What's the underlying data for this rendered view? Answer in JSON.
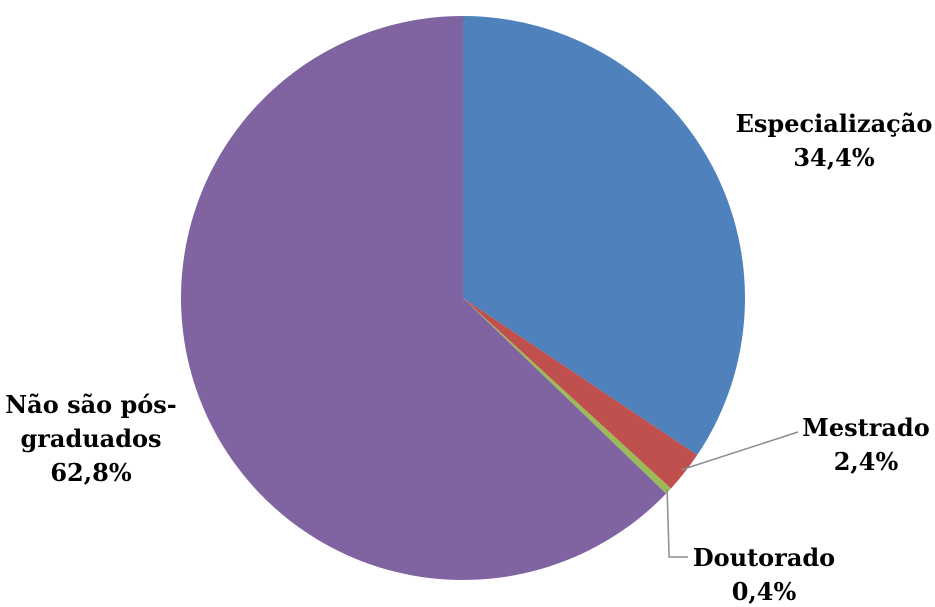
{
  "chart_data": {
    "type": "pie",
    "title": "",
    "slices": [
      {
        "label": "Especialização",
        "value": 34.4,
        "value_label": "34,4%",
        "color": "#4F81BD"
      },
      {
        "label": "Mestrado",
        "value": 2.4,
        "value_label": "2,4%",
        "color": "#C0504D"
      },
      {
        "label": "Doutorado",
        "value": 0.4,
        "value_label": "0,4%",
        "color": "#9BBB59"
      },
      {
        "label": "Não são pós-graduados",
        "label_lines": [
          "Não são pós-",
          "graduados"
        ],
        "value": 62.8,
        "value_label": "62,8%",
        "color": "#8064A2"
      }
    ],
    "start_angle_deg": 0,
    "direction": "clockwise",
    "legend": "none",
    "leader_line_color": "#8C8C8C"
  }
}
